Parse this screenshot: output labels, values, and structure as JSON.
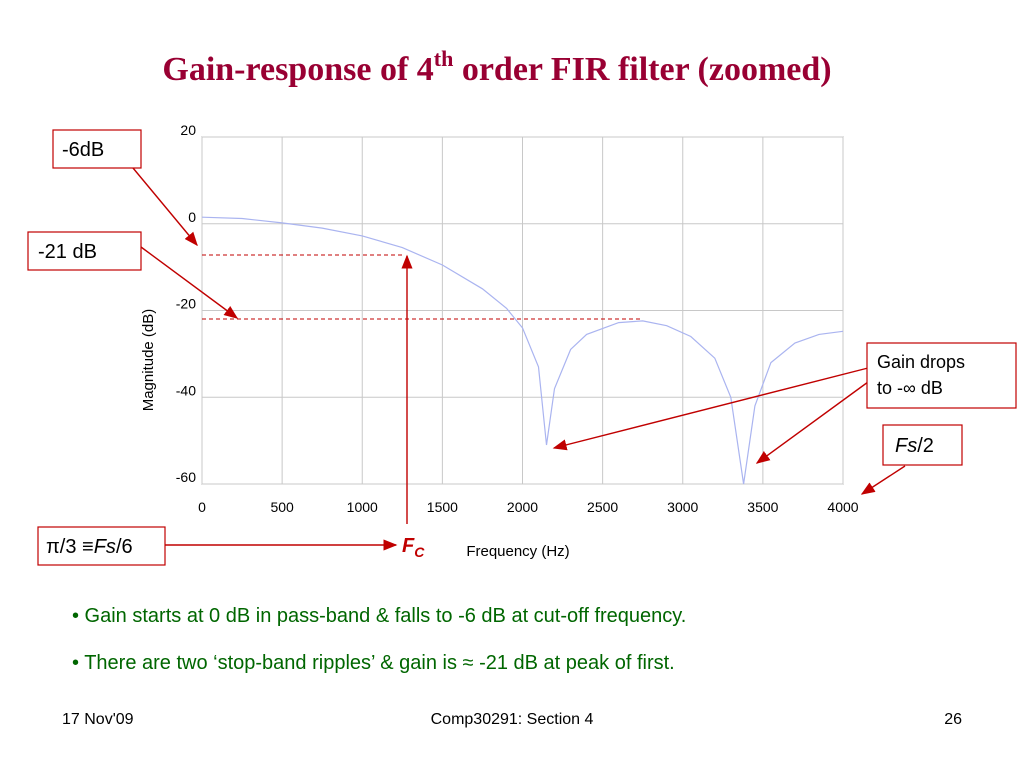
{
  "title_parts": [
    "Gain-response of 4",
    "th",
    " order FIR filter (zoomed)"
  ],
  "chart_data": {
    "type": "line",
    "x_label": "Frequency (Hz)",
    "y_label": "Magnitude (dB)",
    "x": [
      0,
      250,
      500,
      750,
      1000,
      1250,
      1500,
      1750,
      1900,
      2000,
      2100,
      2150,
      2200,
      2300,
      2400,
      2600,
      2750,
      2900,
      3050,
      3200,
      3300,
      3380,
      3450,
      3550,
      3700,
      3850,
      4000
    ],
    "values": [
      1.5,
      1.2,
      0.2,
      -1,
      -2.8,
      -5.5,
      -9.5,
      -15,
      -19.5,
      -24,
      -33,
      -51,
      -38,
      -29,
      -25.5,
      -22.8,
      -22.4,
      -23.5,
      -26,
      -31,
      -40,
      -60,
      -42,
      -32,
      -27.5,
      -25.5,
      -24.8
    ],
    "color": "#aab4f0",
    "xlim": [
      0,
      4000
    ],
    "xticks": [
      0,
      500,
      1000,
      1500,
      2000,
      2500,
      3000,
      3500,
      4000
    ],
    "ylim": [
      -60,
      20
    ],
    "yticks": [
      -60,
      -40,
      -20,
      0,
      20
    ],
    "grid": true
  },
  "annotations": {
    "minus6": "-6dB",
    "minus21": "-21 dB",
    "gain_drops": [
      "Gain drops",
      "to -∞ dB"
    ],
    "fs_half": [
      "Fs",
      "/2"
    ],
    "pi3": [
      "π/3 ≡",
      "Fs",
      "/6"
    ],
    "fc": [
      "F",
      "C"
    ]
  },
  "bullets": [
    "• Gain starts at 0 dB in pass-band & falls to -6 dB at cut-off frequency.",
    "• There are two ‘stop-band ripples’ & gain is ≈ -21 dB at peak of first."
  ],
  "footer": {
    "date": "17 Nov'09",
    "course": "Comp30291: Section 4",
    "page": "26"
  }
}
